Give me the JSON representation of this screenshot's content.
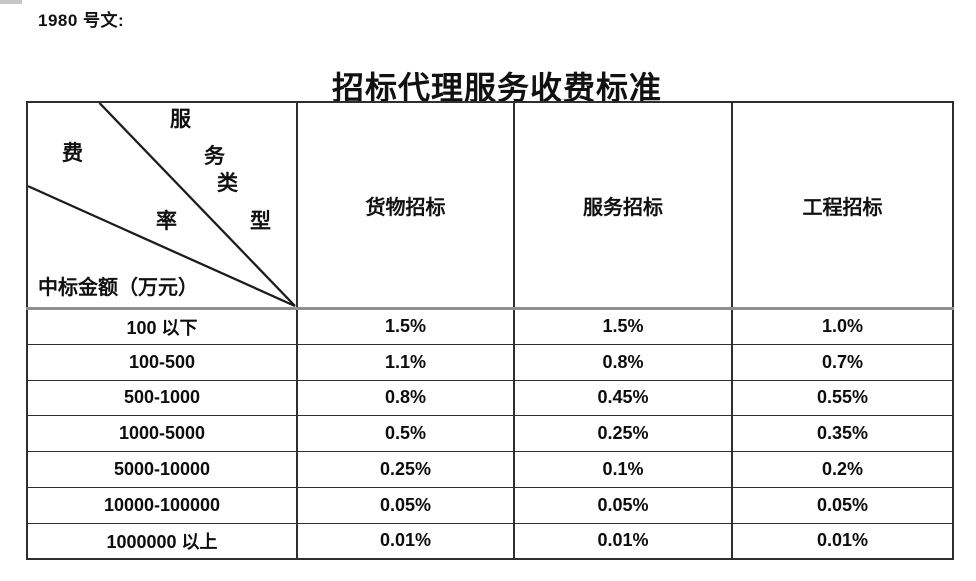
{
  "doc": {
    "ref_label": "1980 号文:",
    "title": "招标代理服务收费标准"
  },
  "table": {
    "corner": {
      "service_type_chars": [
        "服",
        "务",
        "类",
        "型"
      ],
      "fee_rate_chars": [
        "费",
        "率"
      ],
      "amount_label": "中标金额（万元）"
    },
    "columns": [
      "货物招标",
      "服务招标",
      "工程招标"
    ],
    "rows": [
      {
        "range": "100 以下",
        "values": [
          "1.5%",
          "1.5%",
          "1.0%"
        ]
      },
      {
        "range": "100-500",
        "values": [
          "1.1%",
          "0.8%",
          "0.7%"
        ]
      },
      {
        "range": "500-1000",
        "values": [
          "0.8%",
          "0.45%",
          "0.55%"
        ]
      },
      {
        "range": "1000-5000",
        "values": [
          "0.5%",
          "0.25%",
          "0.35%"
        ]
      },
      {
        "range": "5000-10000",
        "values": [
          "0.25%",
          "0.1%",
          "0.2%"
        ]
      },
      {
        "range": "10000-100000",
        "values": [
          "0.05%",
          "0.05%",
          "0.05%"
        ]
      },
      {
        "range": "1000000 以上",
        "values": [
          "0.01%",
          "0.01%",
          "0.01%"
        ]
      }
    ]
  },
  "colors": {
    "text": "#111111",
    "border": "#2f2f2f",
    "header_separator": "#8e8e8e",
    "background": "#ffffff"
  }
}
